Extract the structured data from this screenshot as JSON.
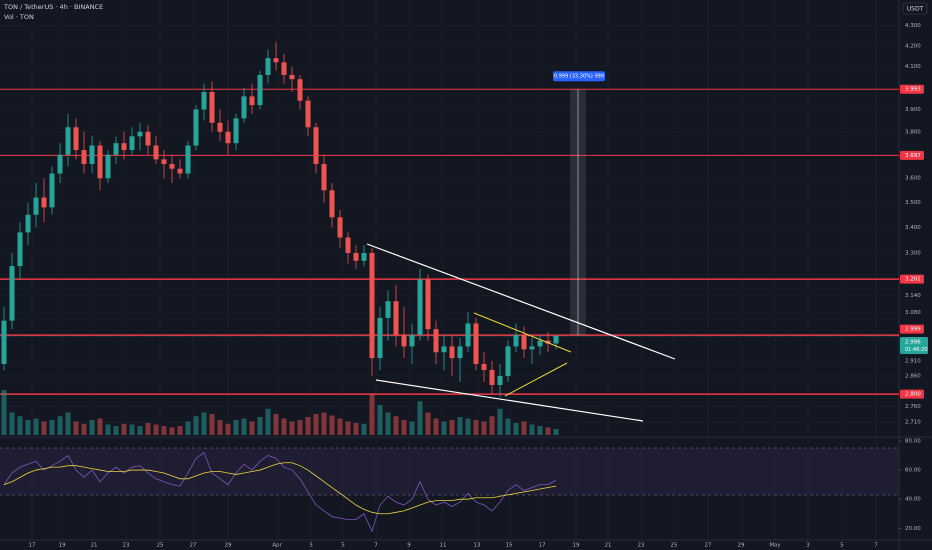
{
  "header": {
    "symbol": "TON / TetherUS · 4h · BINANCE",
    "volume_label": "Vol · TON",
    "currency": "USDT"
  },
  "chart_data": {
    "type": "candlestick",
    "log_scale": true,
    "grid": true,
    "ylim": [
      2.67,
      4.43
    ],
    "yticks": [
      {
        "value": 4.3,
        "label": "4.300"
      },
      {
        "value": 4.2,
        "label": "4.200"
      },
      {
        "value": 4.1,
        "label": "4.100"
      },
      {
        "value": 3.9,
        "label": "3.900"
      },
      {
        "value": 3.8,
        "label": "3.800"
      },
      {
        "value": 3.6,
        "label": "3.600"
      },
      {
        "value": 3.5,
        "label": "3.500"
      },
      {
        "value": 3.4,
        "label": "3.400"
      },
      {
        "value": 3.3,
        "label": "3.300"
      },
      {
        "value": 3.14,
        "label": "3.140"
      },
      {
        "value": 3.08,
        "label": "3.080"
      },
      {
        "value": 2.91,
        "label": "2.910"
      },
      {
        "value": 2.86,
        "label": "2.860"
      },
      {
        "value": 2.76,
        "label": "2.760"
      },
      {
        "value": 2.71,
        "label": "2.710"
      }
    ],
    "up_color": "#26a69a",
    "down_color": "#ef5350",
    "ohlc": [
      [
        2.9,
        3.1,
        2.88,
        3.05
      ],
      [
        3.05,
        3.3,
        3.02,
        3.25
      ],
      [
        3.25,
        3.42,
        3.2,
        3.38
      ],
      [
        3.38,
        3.5,
        3.33,
        3.45
      ],
      [
        3.45,
        3.58,
        3.4,
        3.52
      ],
      [
        3.52,
        3.6,
        3.42,
        3.48
      ],
      [
        3.48,
        3.65,
        3.45,
        3.62
      ],
      [
        3.62,
        3.75,
        3.58,
        3.7
      ],
      [
        3.7,
        3.88,
        3.65,
        3.82
      ],
      [
        3.82,
        3.86,
        3.68,
        3.72
      ],
      [
        3.72,
        3.8,
        3.62,
        3.66
      ],
      [
        3.66,
        3.78,
        3.62,
        3.74
      ],
      [
        3.74,
        3.76,
        3.55,
        3.6
      ],
      [
        3.6,
        3.72,
        3.58,
        3.7
      ],
      [
        3.7,
        3.78,
        3.66,
        3.75
      ],
      [
        3.75,
        3.8,
        3.68,
        3.72
      ],
      [
        3.72,
        3.82,
        3.7,
        3.78
      ],
      [
        3.78,
        3.84,
        3.72,
        3.8
      ],
      [
        3.8,
        3.83,
        3.7,
        3.74
      ],
      [
        3.74,
        3.78,
        3.66,
        3.68
      ],
      [
        3.68,
        3.72,
        3.6,
        3.66
      ],
      [
        3.66,
        3.7,
        3.58,
        3.64
      ],
      [
        3.64,
        3.68,
        3.6,
        3.62
      ],
      [
        3.62,
        3.76,
        3.6,
        3.74
      ],
      [
        3.74,
        3.92,
        3.72,
        3.9
      ],
      [
        3.9,
        4.02,
        3.85,
        3.98
      ],
      [
        3.98,
        4.03,
        3.8,
        3.84
      ],
      [
        3.84,
        3.9,
        3.76,
        3.8
      ],
      [
        3.8,
        3.85,
        3.7,
        3.75
      ],
      [
        3.75,
        3.88,
        3.72,
        3.86
      ],
      [
        3.86,
        4.0,
        3.84,
        3.96
      ],
      [
        3.96,
        4.02,
        3.88,
        3.92
      ],
      [
        3.92,
        4.08,
        3.9,
        4.06
      ],
      [
        4.06,
        4.18,
        4.02,
        4.14
      ],
      [
        4.14,
        4.22,
        4.08,
        4.12
      ],
      [
        4.12,
        4.16,
        4.02,
        4.06
      ],
      [
        4.06,
        4.1,
        3.98,
        4.04
      ],
      [
        4.04,
        4.06,
        3.9,
        3.94
      ],
      [
        3.94,
        3.96,
        3.78,
        3.82
      ],
      [
        3.82,
        3.84,
        3.62,
        3.66
      ],
      [
        3.66,
        3.7,
        3.5,
        3.55
      ],
      [
        3.55,
        3.58,
        3.4,
        3.44
      ],
      [
        3.44,
        3.47,
        3.32,
        3.36
      ],
      [
        3.36,
        3.38,
        3.26,
        3.3
      ],
      [
        3.3,
        3.33,
        3.24,
        3.27
      ],
      [
        3.27,
        3.33,
        3.25,
        3.3
      ],
      [
        3.3,
        3.32,
        2.86,
        2.92
      ],
      [
        2.92,
        3.1,
        2.88,
        3.06
      ],
      [
        3.06,
        3.16,
        2.98,
        3.12
      ],
      [
        3.12,
        3.18,
        2.96,
        3.0
      ],
      [
        3.0,
        3.1,
        2.92,
        2.96
      ],
      [
        2.96,
        3.04,
        2.9,
        3.0
      ],
      [
        3.0,
        3.24,
        2.98,
        3.2
      ],
      [
        3.2,
        3.22,
        2.98,
        3.02
      ],
      [
        3.02,
        3.05,
        2.9,
        2.94
      ],
      [
        2.94,
        3.0,
        2.88,
        2.96
      ],
      [
        2.96,
        3.0,
        2.86,
        2.92
      ],
      [
        2.92,
        2.99,
        2.84,
        2.96
      ],
      [
        2.96,
        3.08,
        2.94,
        3.04
      ],
      [
        3.04,
        3.06,
        2.88,
        2.9
      ],
      [
        2.9,
        2.94,
        2.84,
        2.88
      ],
      [
        2.88,
        2.91,
        2.8,
        2.83
      ],
      [
        2.83,
        2.9,
        2.79,
        2.86
      ],
      [
        2.86,
        2.98,
        2.84,
        2.96
      ],
      [
        2.96,
        3.04,
        2.94,
        3.0
      ],
      [
        3.0,
        3.03,
        2.92,
        2.95
      ],
      [
        2.95,
        2.99,
        2.9,
        2.96
      ],
      [
        2.96,
        3.0,
        2.93,
        2.98
      ],
      [
        2.98,
        3.01,
        2.94,
        2.97
      ],
      [
        2.97,
        3.0,
        2.95,
        2.996
      ]
    ],
    "volume": [
      60,
      30,
      25,
      20,
      22,
      18,
      20,
      25,
      30,
      18,
      15,
      20,
      22,
      14,
      12,
      15,
      14,
      12,
      16,
      14,
      12,
      10,
      12,
      18,
      25,
      30,
      28,
      20,
      15,
      20,
      22,
      18,
      24,
      35,
      28,
      22,
      18,
      20,
      24,
      28,
      30,
      26,
      22,
      18,
      16,
      15,
      55,
      40,
      30,
      25,
      20,
      18,
      45,
      30,
      22,
      18,
      20,
      24,
      22,
      20,
      18,
      25,
      35,
      22,
      16,
      18,
      14,
      12,
      10,
      8
    ],
    "levels": [
      3.993,
      3.697,
      3.201,
      2.999,
      {
        "value": 2.8,
        "label": "2.800"
      }
    ],
    "level_widths": [
      1,
      1,
      1.5,
      1.5,
      1.5
    ],
    "level_color": "#f23645",
    "last_price": 2.996,
    "countdown": "01:46:20",
    "measure_label": "0.999 (33.30%) 999",
    "categories": [
      "17",
      "19",
      "21",
      "23",
      "25",
      "27",
      "29",
      "Apr",
      "3",
      "5",
      "7",
      "9",
      "11",
      "13",
      "15",
      "17",
      "19",
      "21",
      "23",
      "25",
      "27",
      "29",
      "May",
      "3",
      "5",
      "7"
    ],
    "rsi": {
      "values": [
        50,
        58,
        62,
        64,
        66,
        60,
        63,
        66,
        70,
        60,
        55,
        60,
        52,
        58,
        62,
        58,
        62,
        63,
        58,
        54,
        52,
        50,
        49,
        58,
        68,
        72,
        58,
        54,
        50,
        58,
        64,
        60,
        66,
        70,
        68,
        62,
        60,
        54,
        45,
        36,
        32,
        28,
        27,
        26,
        26,
        30,
        18,
        36,
        42,
        38,
        36,
        40,
        52,
        40,
        36,
        38,
        35,
        38,
        44,
        38,
        36,
        32,
        38,
        46,
        50,
        46,
        48,
        50,
        50,
        53
      ],
      "ma": [
        50,
        52,
        55,
        58,
        60,
        61,
        62,
        62,
        63,
        63,
        62,
        61,
        60,
        59,
        59,
        59,
        60,
        60,
        60,
        59,
        58,
        56,
        54,
        54,
        56,
        58,
        59,
        59,
        58,
        57,
        58,
        59,
        60,
        62,
        64,
        65,
        65,
        63,
        60,
        56,
        52,
        48,
        44,
        40,
        36,
        33,
        31,
        30,
        30,
        31,
        32,
        34,
        36,
        38,
        39,
        39,
        39,
        40,
        40,
        41,
        41,
        41,
        42,
        43,
        44,
        45,
        46,
        47,
        48,
        49
      ],
      "ylim": [
        12,
        82
      ],
      "yticks": [
        {
          "value": 80,
          "label": "80.00"
        },
        {
          "value": 60,
          "label": "60.00"
        },
        {
          "value": 40,
          "label": "40.00"
        },
        {
          "value": 20,
          "label": "20.00"
        }
      ],
      "color": "#7e57c2",
      "ma_color": "#f0d43a"
    }
  }
}
